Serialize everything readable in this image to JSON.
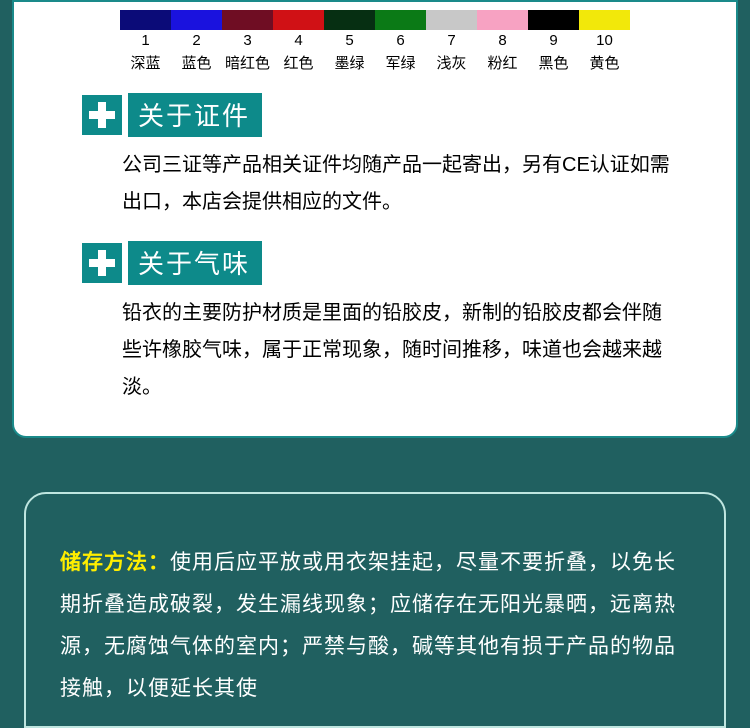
{
  "swatches": {
    "items": [
      {
        "num": "1",
        "name": "深蓝",
        "color": "#0b0b78"
      },
      {
        "num": "2",
        "name": "蓝色",
        "color": "#1a12de"
      },
      {
        "num": "3",
        "name": "暗红色",
        "color": "#6f0d23"
      },
      {
        "num": "4",
        "name": "红色",
        "color": "#d01115"
      },
      {
        "num": "5",
        "name": "墨绿",
        "color": "#062f12"
      },
      {
        "num": "6",
        "name": "军绿",
        "color": "#0b7a16"
      },
      {
        "num": "7",
        "name": "浅灰",
        "color": "#c8c8c8"
      },
      {
        "num": "8",
        "name": "粉红",
        "color": "#f7a2c2"
      },
      {
        "num": "9",
        "name": "黑色",
        "color": "#000000"
      },
      {
        "num": "10",
        "name": "黄色",
        "color": "#f2e80a"
      }
    ]
  },
  "section_cert": {
    "title": "关于证件",
    "body": "公司三证等产品相关证件均随产品一起寄出，另有CE认证如需出口，本店会提供相应的文件。"
  },
  "section_smell": {
    "title": "关于气味",
    "body": "铅衣的主要防护材质是里面的铅胶皮，新制的铅胶皮都会伴随些许橡胶气味，属于正常现象，随时间推移，味道也会越来越淡。"
  },
  "storage": {
    "label": "储存方法：",
    "body": "使用后应平放或用衣架挂起，尽量不要折叠，以免长期折叠造成破裂，发生漏线现象；应储存在无阳光暴晒，远离热源，无腐蚀气体的室内；严禁与酸，碱等其他有损于产品的物品接触，以便延长其使"
  },
  "colors": {
    "teal_bg": "#206060",
    "teal_accent": "#0d8a8a",
    "panel_border": "#1a8a8a",
    "lower_border": "#bfe6e0",
    "highlight": "#ffee00"
  }
}
